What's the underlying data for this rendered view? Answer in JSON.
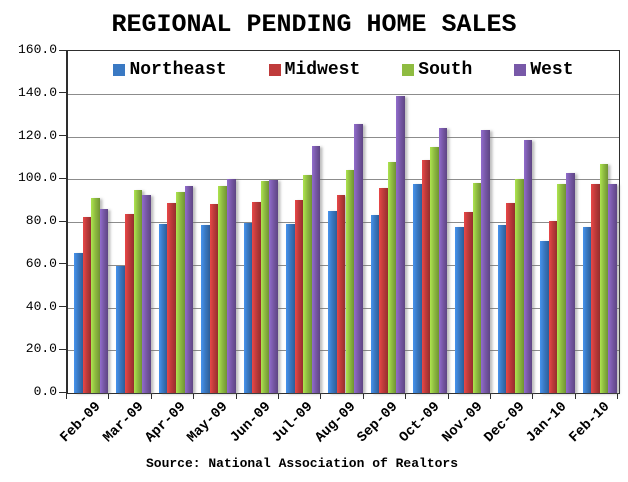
{
  "chart_data": {
    "type": "bar",
    "title": "REGIONAL PENDING HOME SALES",
    "source": "Source: National Association of Realtors",
    "categories": [
      "Feb-09",
      "Mar-09",
      "Apr-09",
      "May-09",
      "Jun-09",
      "Jul-09",
      "Aug-09",
      "Sep-09",
      "Oct-09",
      "Nov-09",
      "Dec-09",
      "Jan-10",
      "Feb-10"
    ],
    "series": [
      {
        "name": "Northeast",
        "color": "#3a79c3",
        "values": [
          65.3,
          59.5,
          78.9,
          78.7,
          79.5,
          79.2,
          85.4,
          83.4,
          98.0,
          77.6,
          78.4,
          71.3,
          77.7
        ]
      },
      {
        "name": "Midwest",
        "color": "#bf3b3b",
        "values": [
          82.5,
          83.9,
          88.9,
          88.6,
          89.2,
          90.1,
          92.8,
          95.9,
          108.9,
          84.9,
          89.0,
          80.4,
          97.9
        ]
      },
      {
        "name": "South",
        "color": "#8fbc41",
        "values": [
          91.2,
          94.8,
          94.0,
          96.7,
          99.2,
          102.2,
          104.5,
          108.1,
          115.1,
          98.4,
          100.3,
          98.0,
          107.0
        ]
      },
      {
        "name": "West",
        "color": "#7859a8",
        "values": [
          85.9,
          92.5,
          96.8,
          100.3,
          99.5,
          115.5,
          125.8,
          138.9,
          124.1,
          123.0,
          118.6,
          102.9,
          98.0
        ]
      }
    ],
    "ylim": [
      0,
      160
    ],
    "ytick_step": 20,
    "ytick_labels": [
      "0.0",
      "20.0",
      "40.0",
      "60.0",
      "80.0",
      "100.0",
      "120.0",
      "140.0",
      "160.0"
    ],
    "grid": true,
    "legend_position": "top-inside",
    "gridline_color": "#8c8c8c",
    "axis_color": "#2e2e2e"
  }
}
